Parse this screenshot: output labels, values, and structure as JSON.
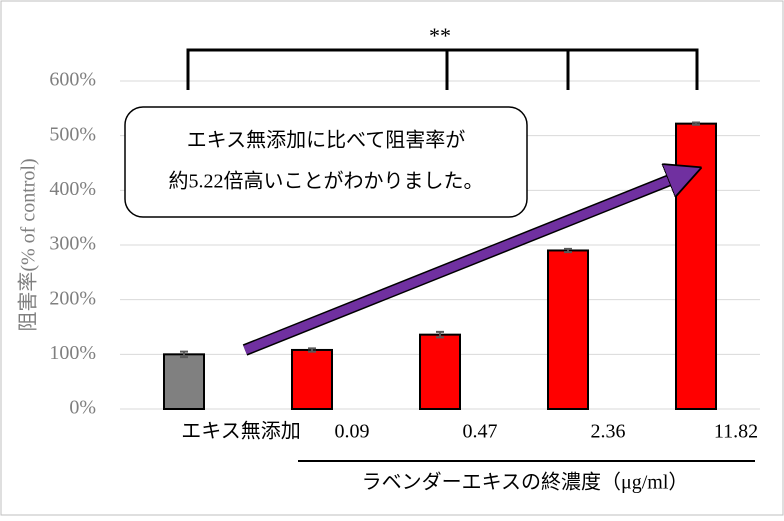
{
  "chart_data": {
    "type": "bar",
    "categories": [
      "エキス無添加",
      "0.09",
      "0.47",
      "2.36",
      "11.82"
    ],
    "values": [
      100,
      108,
      136,
      290,
      522
    ],
    "errors": [
      5,
      3,
      5,
      3,
      2
    ],
    "colors": [
      "#808080",
      "#ff0000",
      "#ff0000",
      "#ff0000",
      "#ff0000"
    ],
    "ylim": [
      0,
      600
    ],
    "yticks": [
      {
        "value": 0,
        "label": "0%"
      },
      {
        "value": 100,
        "label": "100%"
      },
      {
        "value": 200,
        "label": "200%"
      },
      {
        "value": 300,
        "label": "300%"
      },
      {
        "value": 400,
        "label": "400%"
      },
      {
        "value": 500,
        "label": "500%"
      },
      {
        "value": 600,
        "label": "600%"
      }
    ],
    "grid": true,
    "y_label": "阻害率(% of control)",
    "x_label": "ラベンダーエキスの終濃度（μg/ml）",
    "significance": "**",
    "callout": [
      "エキス無添加に比べて阻害率が",
      "約5.22倍高いことがわかりました。"
    ]
  }
}
